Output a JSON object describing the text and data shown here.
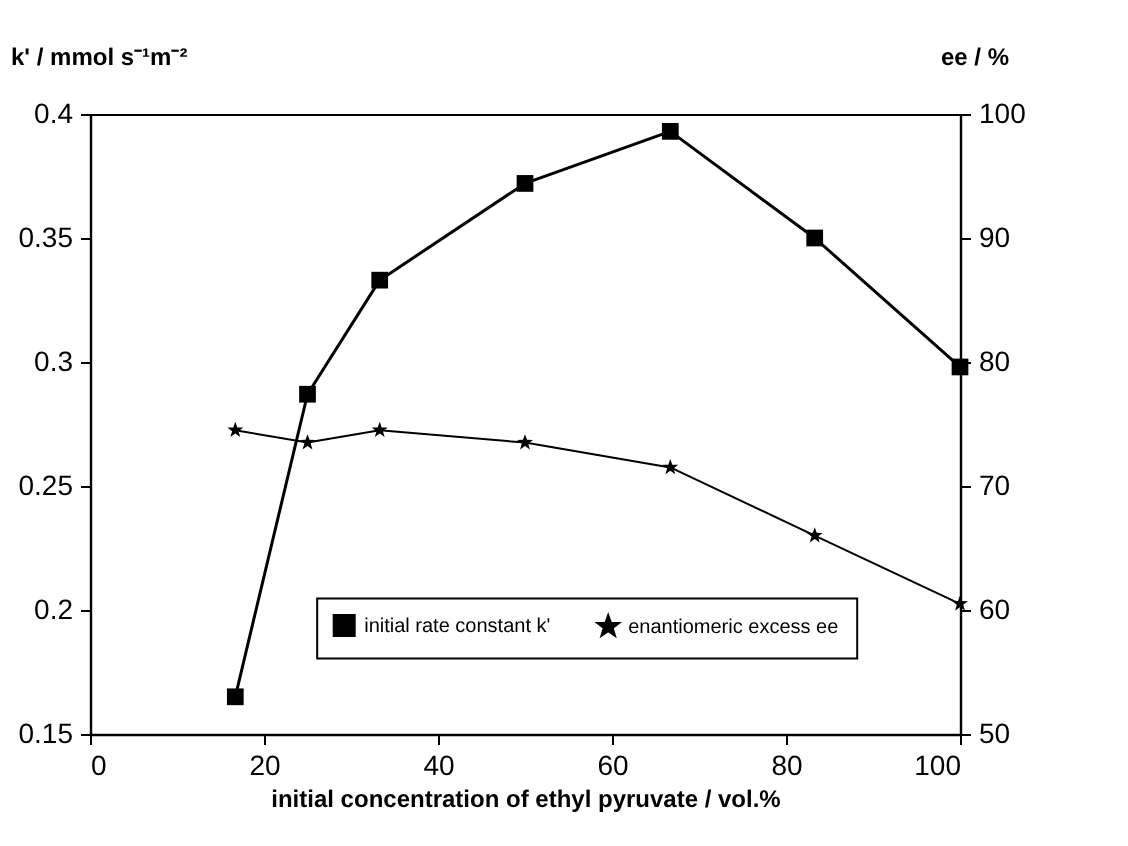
{
  "chart_data": {
    "type": "line",
    "xlabel": "initial concentration of ethyl pyruvate / vol.%",
    "ylabel": "k' / mmol s⁻¹m⁻²",
    "y2label": "ee / %",
    "x": [
      16.7,
      25,
      33.3,
      50,
      66.7,
      83.3,
      100
    ],
    "xlim": [
      0,
      100
    ],
    "xticks": [
      0,
      20,
      40,
      60,
      80,
      100
    ],
    "ylim": [
      0.15,
      0.4
    ],
    "yticks": [
      0.15,
      0.2,
      0.25,
      0.3,
      0.35,
      0.4
    ],
    "y2lim": [
      50,
      100
    ],
    "y2ticks": [
      50,
      60,
      70,
      80,
      90,
      100
    ],
    "grid": false,
    "legend": "bottom",
    "line_style": "solid",
    "series": [
      {
        "name": "initial rate constant k'",
        "color": "#000000",
        "marker": "square",
        "values": [
          0.165,
          0.287,
          0.333,
          0.372,
          0.393,
          0.35,
          0.298
        ]
      },
      {
        "name": "enantiomeric excess ee",
        "color": "#000000",
        "marker": "star",
        "axis": "y2",
        "values": [
          74.5,
          73.5,
          74.5,
          73.5,
          71.5,
          66,
          60.5
        ]
      }
    ]
  }
}
